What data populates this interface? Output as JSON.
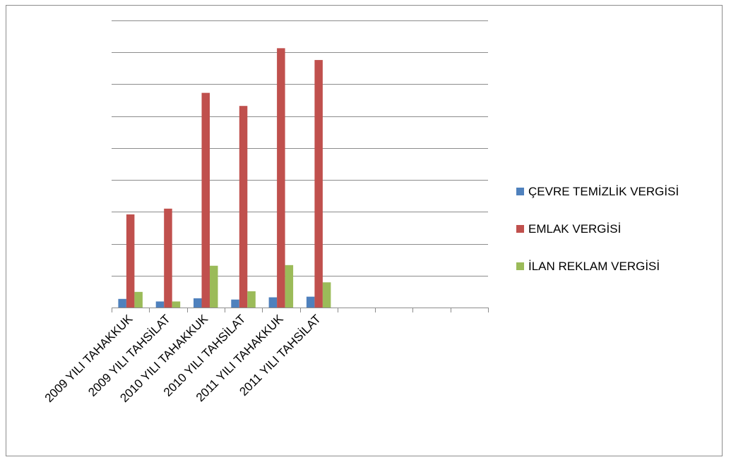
{
  "chart_data": {
    "type": "bar",
    "title": "",
    "xlabel": "",
    "ylabel": "",
    "categories": [
      "2009 YILI TAHAKKUK",
      "2009 YILI TAHSİLAT",
      "2010 YILI TAHAKKUK",
      "2010 YILI TAHSİLAT",
      "2011 YILI TAHAKKUK",
      "2011 YILI TAHSİLAT",
      "",
      "",
      "",
      ""
    ],
    "series": [
      {
        "name": "ÇEVRE TEMİZLİK VERGİSİ",
        "color": "#4f81bd",
        "values": [
          0.27,
          0.19,
          0.29,
          0.25,
          0.32,
          0.34,
          null,
          null,
          null,
          null
        ]
      },
      {
        "name": "EMLAK VERGİSİ",
        "color": "#c0504d",
        "values": [
          2.92,
          3.1,
          6.73,
          6.32,
          8.13,
          7.76,
          null,
          null,
          null,
          null
        ]
      },
      {
        "name": "İLAN REKLAM VERGİSİ",
        "color": "#9bbb59",
        "values": [
          0.49,
          0.19,
          1.31,
          0.51,
          1.33,
          0.79,
          null,
          null,
          null,
          null
        ]
      }
    ],
    "ylim": [
      0,
      9
    ],
    "y_tick_step": 1,
    "y_tick_labels_visible": false,
    "grid": true,
    "legend": "right",
    "gridline_color": "#8c8c8c"
  }
}
